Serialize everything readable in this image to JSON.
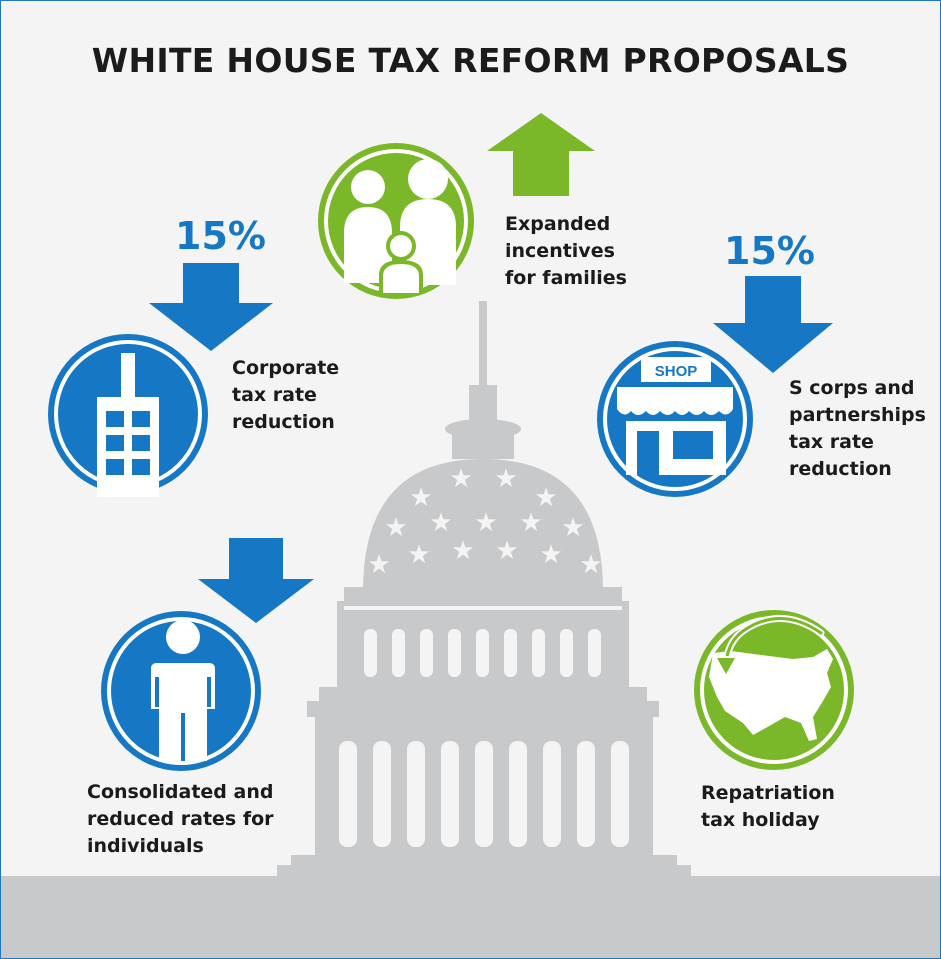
{
  "title": "WHITE HOUSE TAX REFORM PROPOSALS",
  "colors": {
    "blue": "#1678c5",
    "green": "#7ab829",
    "gray": "#c8c9cb",
    "background": "#f4f4f4",
    "text": "#1b1b1b"
  },
  "proposals": {
    "families": {
      "icon": "family-icon",
      "direction": "up",
      "label": [
        "Expanded",
        "incentives",
        "for families"
      ]
    },
    "corporate": {
      "icon": "building-icon",
      "direction": "down",
      "percent": "15%",
      "label": [
        "Corporate",
        "tax rate",
        "reduction"
      ]
    },
    "s_corps": {
      "icon": "shop-icon",
      "sign": "SHOP",
      "direction": "down",
      "percent": "15%",
      "label": [
        "S corps and",
        "partnerships",
        "tax rate",
        "reduction"
      ]
    },
    "individuals": {
      "icon": "person-icon",
      "direction": "down",
      "label": [
        "Consolidated and",
        "reduced rates for",
        "individuals"
      ]
    },
    "repatriation": {
      "icon": "us-map-icon",
      "label": [
        "Repatriation",
        "tax holiday"
      ]
    }
  }
}
